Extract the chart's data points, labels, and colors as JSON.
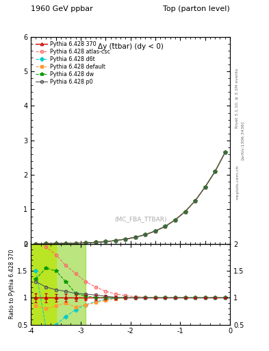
{
  "title_left": "1960 GeV ppbar",
  "title_right": "Top (parton level)",
  "plot_label": "Δy (t̄tbar) (dy < 0)",
  "ylabel_ratio": "Ratio to Pythia 6.428 370",
  "right_label1": "Rivet 3.1.10, ≥ 3.1M events",
  "right_label2": "[arXiv:1306.3436]",
  "watermark": "(MC_FBA_TTBAR)",
  "mcplots": "mcplots.cern.ch",
  "xlim": [
    -4.0,
    0.0
  ],
  "ylim_main": [
    0.0,
    6.0
  ],
  "ylim_ratio": [
    0.5,
    2.0
  ],
  "x_data": [
    -3.9,
    -3.7,
    -3.5,
    -3.3,
    -3.1,
    -2.9,
    -2.7,
    -2.5,
    -2.3,
    -2.1,
    -1.9,
    -1.7,
    -1.5,
    -1.3,
    -1.1,
    -0.9,
    -0.7,
    -0.5,
    -0.3,
    -0.1
  ],
  "series": [
    {
      "label": "Pythia 6.428 370",
      "color": "#cc0000",
      "linestyle": "-",
      "marker": "^",
      "markersize": 3,
      "fillstyle": "none",
      "linewidth": 1.0,
      "y_main": [
        0.005,
        0.007,
        0.01,
        0.015,
        0.022,
        0.032,
        0.047,
        0.068,
        0.098,
        0.14,
        0.195,
        0.27,
        0.375,
        0.51,
        0.7,
        0.94,
        1.25,
        1.65,
        2.1,
        2.65
      ],
      "y_ratio": [
        1.0,
        1.0,
        1.0,
        1.0,
        1.0,
        1.0,
        1.0,
        1.0,
        1.0,
        1.0,
        1.0,
        1.0,
        1.0,
        1.0,
        1.0,
        1.0,
        1.0,
        1.0,
        1.0,
        1.0
      ],
      "y_ratio_err": [
        0.08,
        0.08,
        0.07,
        0.07,
        0.06,
        0.05,
        0.05,
        0.04,
        0.03,
        0.02,
        0.02,
        0.01,
        0.01,
        0.01,
        0.01,
        0.01,
        0.01,
        0.01,
        0.01,
        0.01
      ]
    },
    {
      "label": "Pythia 6.428 atlas-csc",
      "color": "#ff6666",
      "linestyle": "--",
      "marker": "o",
      "markersize": 3,
      "fillstyle": "none",
      "linewidth": 0.8,
      "y_main": [
        0.005,
        0.007,
        0.01,
        0.015,
        0.022,
        0.032,
        0.047,
        0.068,
        0.098,
        0.14,
        0.195,
        0.27,
        0.375,
        0.51,
        0.7,
        0.94,
        1.25,
        1.65,
        2.1,
        2.65
      ],
      "y_ratio": [
        2.1,
        1.95,
        1.8,
        1.6,
        1.45,
        1.3,
        1.2,
        1.12,
        1.07,
        1.04,
        1.02,
        1.01,
        1.0,
        1.0,
        1.0,
        1.0,
        1.0,
        1.0,
        1.0,
        1.0
      ],
      "y_ratio_err": [
        0.0,
        0.0,
        0.0,
        0.0,
        0.0,
        0.0,
        0.0,
        0.0,
        0.0,
        0.0,
        0.0,
        0.0,
        0.0,
        0.0,
        0.0,
        0.0,
        0.0,
        0.0,
        0.0,
        0.0
      ]
    },
    {
      "label": "Pythia 6.428 d6t",
      "color": "#00cccc",
      "linestyle": "--",
      "marker": "D",
      "markersize": 3,
      "fillstyle": "full",
      "linewidth": 0.8,
      "y_main": [
        0.005,
        0.007,
        0.01,
        0.015,
        0.022,
        0.032,
        0.047,
        0.068,
        0.098,
        0.14,
        0.195,
        0.27,
        0.375,
        0.51,
        0.7,
        0.94,
        1.25,
        1.65,
        2.1,
        2.65
      ],
      "y_ratio": [
        1.5,
        0.45,
        0.5,
        0.65,
        0.78,
        0.87,
        0.93,
        0.97,
        0.99,
        1.0,
        1.0,
        1.0,
        1.0,
        1.0,
        1.0,
        1.0,
        1.0,
        1.0,
        1.0,
        1.0
      ],
      "y_ratio_err": [
        0.0,
        0.0,
        0.0,
        0.0,
        0.0,
        0.0,
        0.0,
        0.0,
        0.0,
        0.0,
        0.0,
        0.0,
        0.0,
        0.0,
        0.0,
        0.0,
        0.0,
        0.0,
        0.0,
        0.0
      ]
    },
    {
      "label": "Pythia 6.428 default",
      "color": "#ff9933",
      "linestyle": "--",
      "marker": "s",
      "markersize": 3,
      "fillstyle": "full",
      "linewidth": 0.8,
      "y_main": [
        0.005,
        0.007,
        0.01,
        0.015,
        0.022,
        0.032,
        0.047,
        0.068,
        0.098,
        0.14,
        0.195,
        0.27,
        0.375,
        0.51,
        0.7,
        0.94,
        1.25,
        1.65,
        2.1,
        2.65
      ],
      "y_ratio": [
        0.85,
        0.8,
        0.85,
        0.9,
        0.83,
        0.87,
        0.91,
        0.95,
        0.98,
        1.0,
        1.0,
        1.0,
        1.0,
        1.0,
        1.0,
        1.0,
        1.0,
        1.0,
        1.0,
        1.0
      ],
      "y_ratio_err": [
        0.0,
        0.0,
        0.0,
        0.0,
        0.0,
        0.0,
        0.0,
        0.0,
        0.0,
        0.0,
        0.0,
        0.0,
        0.0,
        0.0,
        0.0,
        0.0,
        0.0,
        0.0,
        0.0,
        0.0
      ]
    },
    {
      "label": "Pythia 6.428 dw",
      "color": "#009900",
      "linestyle": "--",
      "marker": "*",
      "markersize": 4,
      "fillstyle": "full",
      "linewidth": 0.8,
      "y_main": [
        0.005,
        0.007,
        0.01,
        0.015,
        0.022,
        0.032,
        0.047,
        0.068,
        0.098,
        0.14,
        0.195,
        0.27,
        0.375,
        0.51,
        0.7,
        0.94,
        1.25,
        1.65,
        2.1,
        2.65
      ],
      "y_ratio": [
        1.35,
        1.55,
        1.5,
        1.3,
        1.08,
        1.03,
        1.01,
        1.0,
        1.0,
        1.0,
        1.0,
        1.0,
        1.0,
        1.0,
        1.0,
        1.0,
        1.0,
        1.0,
        1.0,
        1.0
      ],
      "y_ratio_err": [
        0.0,
        0.0,
        0.0,
        0.0,
        0.0,
        0.0,
        0.0,
        0.0,
        0.0,
        0.0,
        0.0,
        0.0,
        0.0,
        0.0,
        0.0,
        0.0,
        0.0,
        0.0,
        0.0,
        0.0
      ]
    },
    {
      "label": "Pythia 6.428 p0",
      "color": "#555555",
      "linestyle": "-",
      "marker": "o",
      "markersize": 3,
      "fillstyle": "none",
      "linewidth": 0.8,
      "y_main": [
        0.005,
        0.007,
        0.01,
        0.015,
        0.022,
        0.032,
        0.047,
        0.068,
        0.098,
        0.14,
        0.195,
        0.27,
        0.375,
        0.51,
        0.7,
        0.94,
        1.25,
        1.65,
        2.1,
        2.65
      ],
      "y_ratio": [
        1.3,
        1.2,
        1.15,
        1.12,
        1.08,
        1.07,
        1.05,
        1.03,
        1.01,
        1.0,
        1.0,
        1.0,
        1.0,
        1.0,
        1.0,
        1.0,
        1.0,
        1.0,
        1.0,
        1.0
      ],
      "y_ratio_err": [
        0.0,
        0.0,
        0.0,
        0.0,
        0.0,
        0.0,
        0.0,
        0.0,
        0.0,
        0.0,
        0.0,
        0.0,
        0.0,
        0.0,
        0.0,
        0.0,
        0.0,
        0.0,
        0.0,
        0.0
      ]
    }
  ],
  "band_yellow": [
    -4.0,
    -3.5
  ],
  "band_green": [
    -4.0,
    -2.9
  ],
  "yticks_main": [
    0,
    1,
    2,
    3,
    4,
    5,
    6
  ],
  "yticks_ratio": [
    0.5,
    1.0,
    1.5,
    2.0
  ],
  "xticks": [
    -4,
    -3,
    -2,
    -1,
    0
  ]
}
